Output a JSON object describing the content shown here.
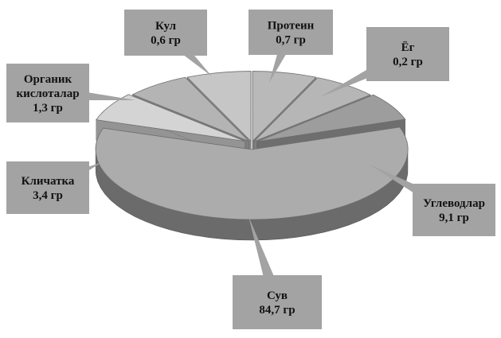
{
  "chart_data": {
    "type": "pie",
    "title": "",
    "slices": [
      {
        "label": "Протеин",
        "value": 0.7,
        "value_label": "0,7 гр",
        "color": "#b9b9b9"
      },
      {
        "label": "Ёг",
        "value": 0.2,
        "value_label": "0,2 гр",
        "color": "#b6b6b6"
      },
      {
        "label": "Углеводлар",
        "value": 9.1,
        "value_label": "9,1 гр",
        "color": "#9d9d9d"
      },
      {
        "label": "Сув",
        "value": 84.7,
        "value_label": "84,7 гр",
        "color": "#acacac"
      },
      {
        "label": "Кличатка",
        "value": 3.4,
        "value_label": "3,4 гр",
        "color": "#d4d4d4"
      },
      {
        "label": "Органик кислоталар",
        "value": 1.3,
        "value_label": "1,3 гр",
        "color": "#b4b4b4"
      },
      {
        "label": "Кул",
        "value": 0.6,
        "value_label": "0,6 гр",
        "color": "#c6c6c6"
      }
    ],
    "label_lines": {
      "Протеин": [
        "Протеин",
        "0,7 гр"
      ],
      "Ёг": [
        "Ёг",
        "0,2 гр"
      ],
      "Углеводлар": [
        "Углеводлар",
        "9,1 гр"
      ],
      "Сув": [
        "Сув",
        "84,7 гр"
      ],
      "Кличатка": [
        "Кличатка",
        "3,4 гр"
      ],
      "Органик кислоталар": [
        "Органик",
        "кислоталар",
        "1,3 гр"
      ],
      "Кул": [
        "Кул",
        "0,6 гр"
      ]
    },
    "style": "3d-exploded",
    "legend": "none",
    "callout_color": "#a3a3a3"
  }
}
